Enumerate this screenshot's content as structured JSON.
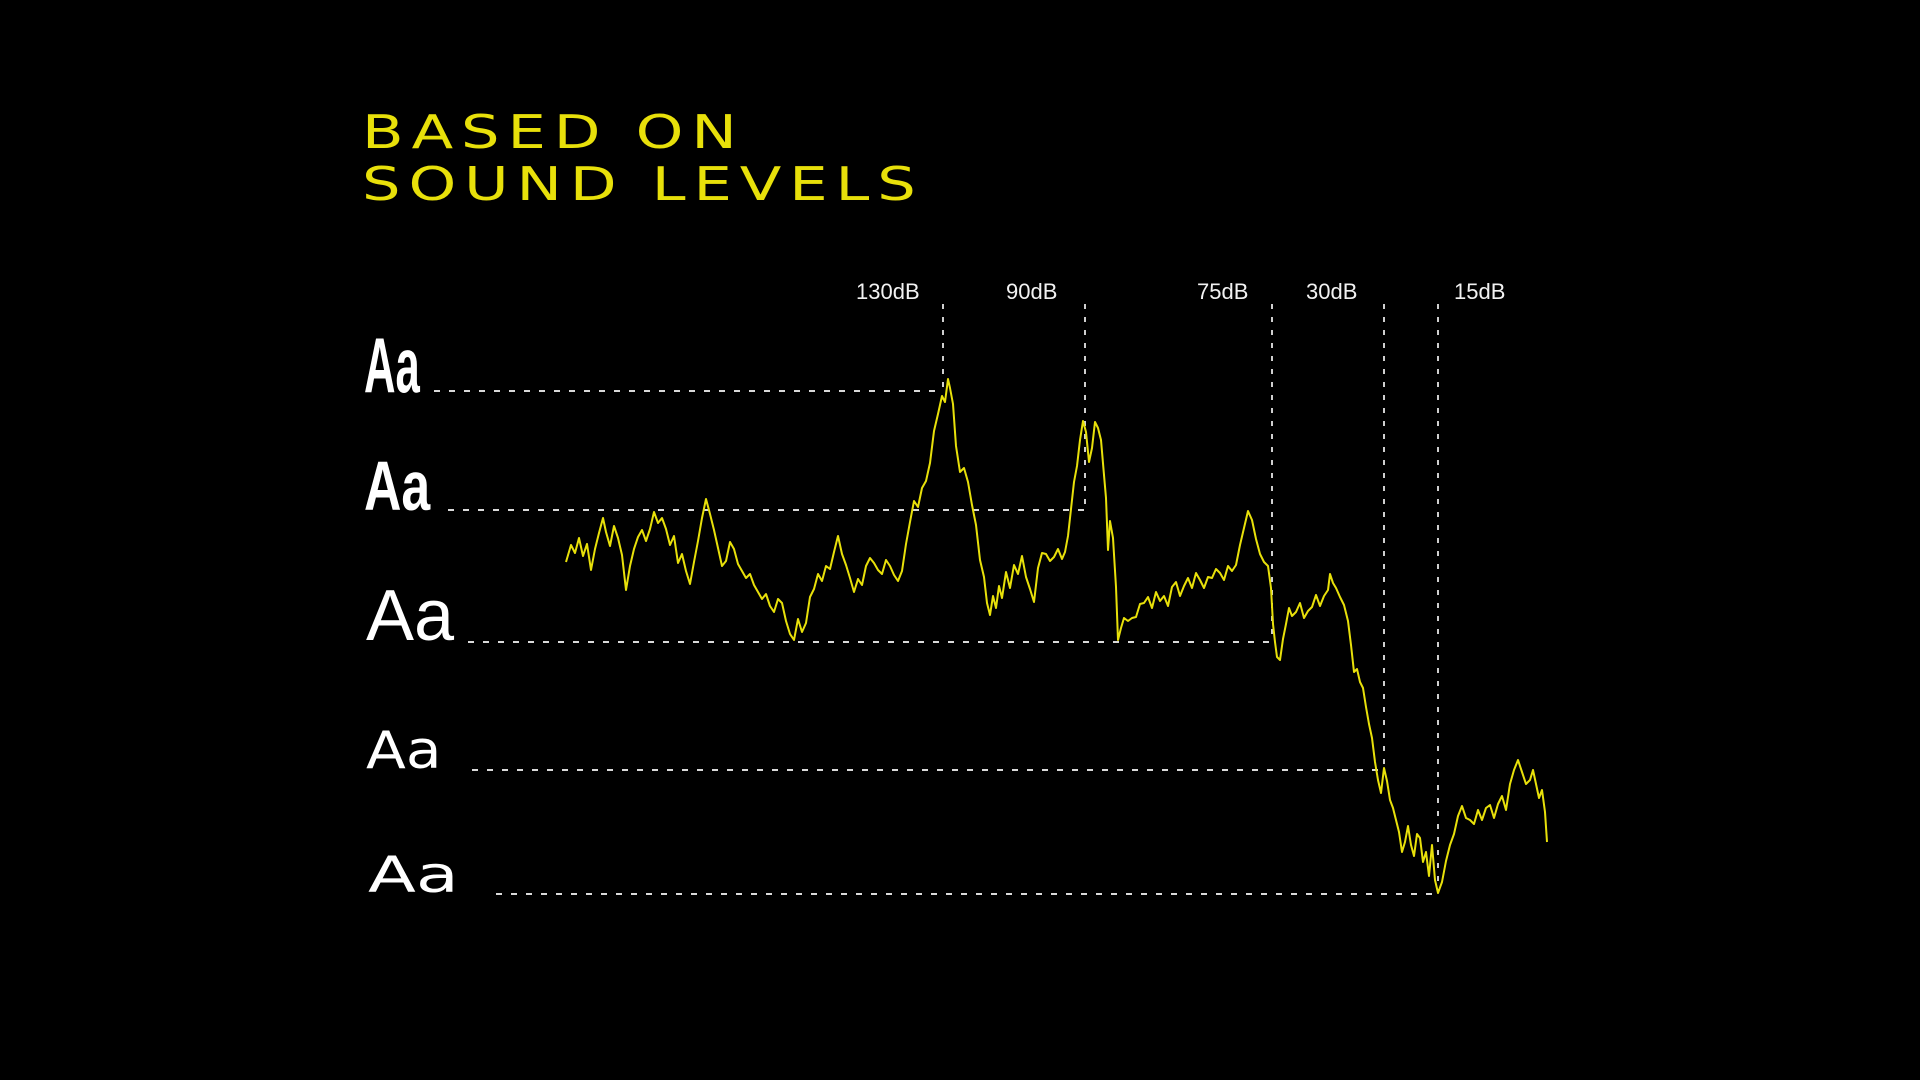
{
  "title": {
    "line1": "BASED ON",
    "line2": "SOUND LEVELS"
  },
  "colors": {
    "background": "#000000",
    "accent": "#e8e00a",
    "text": "#ffffff",
    "guide": "#d9d9d9"
  },
  "levels": [
    {
      "label": "130dB",
      "db": 130
    },
    {
      "label": "90dB",
      "db": 90
    },
    {
      "label": "75dB",
      "db": 75
    },
    {
      "label": "30dB",
      "db": 30
    },
    {
      "label": "15dB",
      "db": 15
    }
  ],
  "type_samples": [
    {
      "text": "Aa",
      "style": "extra-condensed-bold"
    },
    {
      "text": "Aa",
      "style": "condensed-bold"
    },
    {
      "text": "Aa",
      "style": "regular"
    },
    {
      "text": "Aa",
      "style": "extended-light"
    },
    {
      "text": "Aa",
      "style": "extra-extended-light"
    }
  ]
}
